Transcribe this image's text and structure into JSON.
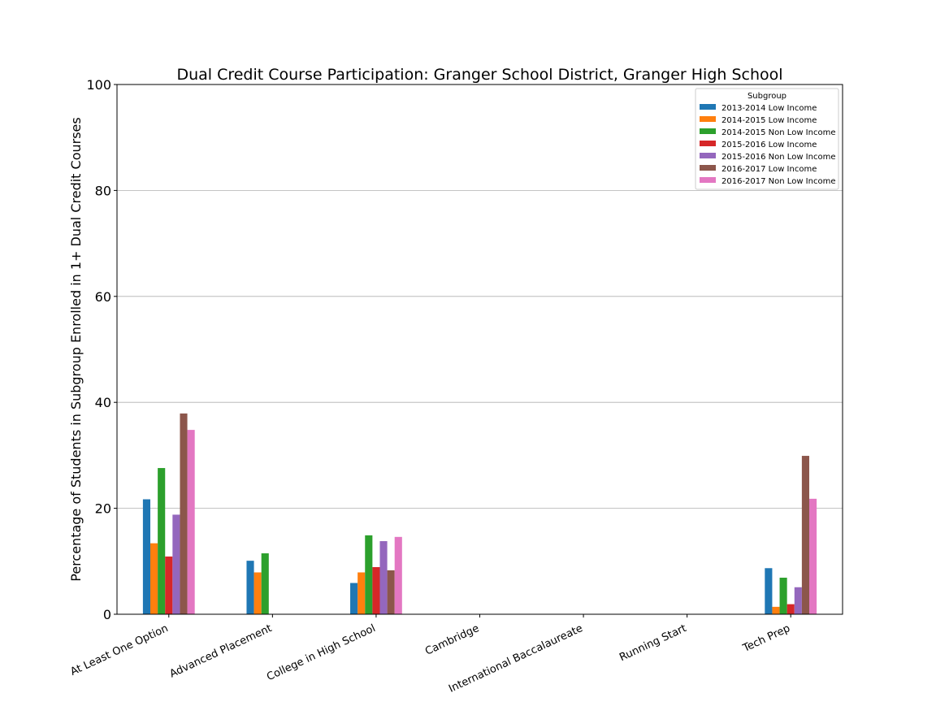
{
  "chart_data": {
    "type": "bar",
    "title": "Dual Credit Course Participation: Granger School District, Granger High School",
    "xlabel": "",
    "ylabel": "Percentage of Students in Subgroup Enrolled in 1+ Dual Credit Courses",
    "ylim": [
      0,
      100
    ],
    "yticks": [
      0,
      20,
      40,
      60,
      80,
      100
    ],
    "grid": "horizontal",
    "categories": [
      "At Least One Option",
      "Advanced Placement",
      "College in High School",
      "Cambridge",
      "International Baccalaureate",
      "Running Start",
      "Tech Prep"
    ],
    "legend": {
      "title": "Subgroup",
      "placement": "top-right"
    },
    "series": [
      {
        "name": "2013-2014 Low Income",
        "color": "#1f77b4",
        "values": [
          21.7,
          10.1,
          5.9,
          0,
          0,
          0,
          8.7
        ]
      },
      {
        "name": "2014-2015 Low Income",
        "color": "#ff7f0e",
        "values": [
          13.4,
          7.9,
          7.9,
          0,
          0,
          0,
          1.4
        ]
      },
      {
        "name": "2014-2015 Non Low Income",
        "color": "#2ca02c",
        "values": [
          27.6,
          11.5,
          14.9,
          0,
          0,
          0,
          6.9
        ]
      },
      {
        "name": "2015-2016 Low Income",
        "color": "#d62728",
        "values": [
          10.9,
          0,
          8.9,
          0,
          0,
          0,
          1.9
        ]
      },
      {
        "name": "2015-2016 Non Low Income",
        "color": "#9467bd",
        "values": [
          18.8,
          0,
          13.8,
          0,
          0,
          0,
          5.1
        ]
      },
      {
        "name": "2016-2017 Low Income",
        "color": "#8c564b",
        "values": [
          37.9,
          0,
          8.3,
          0,
          0,
          0,
          29.9
        ]
      },
      {
        "name": "2016-2017 Non Low Income",
        "color": "#e377c2",
        "values": [
          34.8,
          0,
          14.6,
          0,
          0,
          0,
          21.8
        ]
      }
    ]
  }
}
